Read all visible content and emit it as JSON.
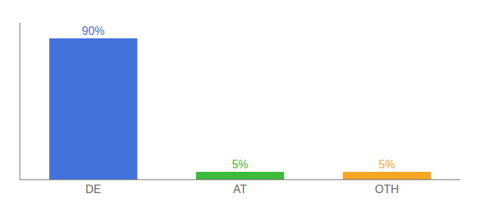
{
  "chart_data": {
    "type": "bar",
    "categories": [
      "DE",
      "AT",
      "OTH"
    ],
    "values": [
      90,
      5,
      5
    ],
    "value_labels": [
      "90%",
      "5%",
      "5%"
    ],
    "colors": [
      "#4472db",
      "#3dbb3d",
      "#f5a623"
    ],
    "ylim": [
      0,
      100
    ],
    "yticks": [],
    "tick_labels": "x",
    "grid": false,
    "data_labels": true
  }
}
